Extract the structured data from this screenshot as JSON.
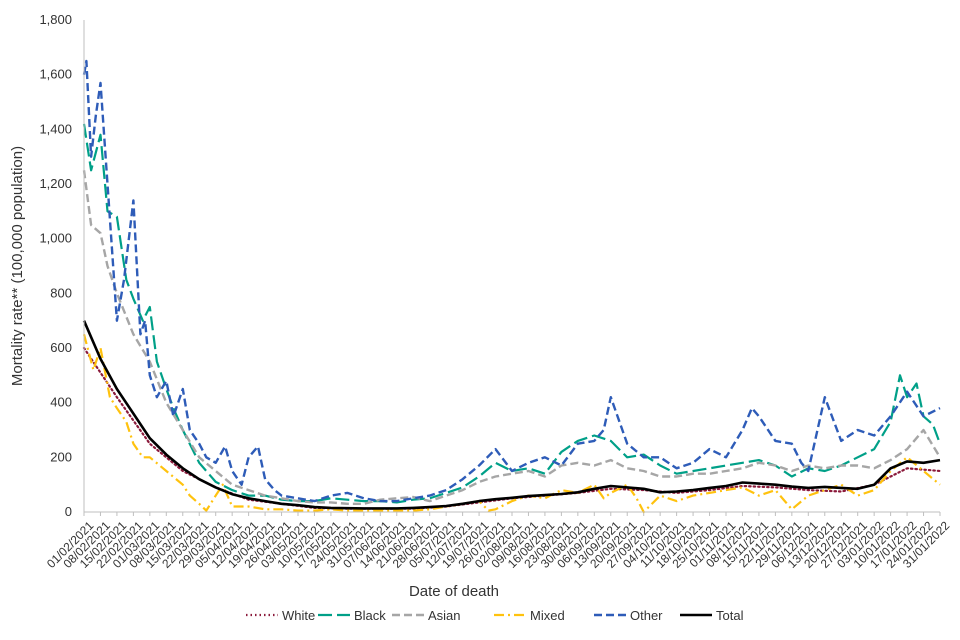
{
  "chart_data": {
    "type": "line",
    "xlabel": "Date of death",
    "ylabel": "Mortality rate** (100,000 population)",
    "ylim": [
      0,
      1800
    ],
    "y_ticks": [
      "0",
      "200",
      "400",
      "600",
      "800",
      "1,000",
      "1,200",
      "1,400",
      "1,600",
      "1,800"
    ],
    "x_range": [
      "01/02/2021",
      "31/01/2022"
    ],
    "x_tick_labels": [
      "01/02/2021",
      "08/02/2021",
      "15/02/2021",
      "22/02/2021",
      "01/03/2021",
      "08/03/2021",
      "15/03/2021",
      "22/03/2021",
      "29/03/2021",
      "05/04/2021",
      "12/04/2021",
      "19/04/2021",
      "26/04/2021",
      "03/05/2021",
      "10/05/2021",
      "17/05/2021",
      "24/05/2021",
      "31/05/2021",
      "07/06/2021",
      "14/06/2021",
      "21/06/2021",
      "28/06/2021",
      "05/07/2021",
      "12/07/2021",
      "19/07/2021",
      "26/07/2021",
      "02/08/2021",
      "09/08/2021",
      "16/08/2021",
      "23/08/2021",
      "30/08/2021",
      "06/09/2021",
      "13/09/2021",
      "20/09/2021",
      "27/09/2021",
      "04/10/2021",
      "11/10/2021",
      "18/10/2021",
      "25/10/2021",
      "01/11/2021",
      "08/11/2021",
      "15/11/2021",
      "22/11/2021",
      "29/11/2021",
      "06/12/2021",
      "13/12/2021",
      "20/12/2021",
      "27/12/2021",
      "03/01/2022",
      "10/01/2022",
      "17/01/2022",
      "24/01/2022",
      "31/01/2022"
    ],
    "grid": false,
    "legend_position": "bottom",
    "series": [
      {
        "name": "White",
        "color": "#8b1a3b",
        "style": "dotted",
        "x": [
          "01/02/2021",
          "15/02/2021",
          "01/03/2021",
          "15/03/2021",
          "29/03/2021",
          "12/04/2021",
          "26/04/2021",
          "10/05/2021",
          "24/05/2021",
          "07/06/2021",
          "21/06/2021",
          "05/07/2021",
          "19/07/2021",
          "02/08/2021",
          "16/08/2021",
          "30/08/2021",
          "13/09/2021",
          "27/09/2021",
          "11/10/2021",
          "25/10/2021",
          "08/11/2021",
          "22/11/2021",
          "06/12/2021",
          "20/12/2021",
          "03/01/2022",
          "17/01/2022",
          "31/01/2022"
        ],
        "y": [
          600,
          420,
          250,
          150,
          90,
          45,
          30,
          15,
          12,
          12,
          12,
          20,
          35,
          50,
          60,
          70,
          85,
          80,
          70,
          80,
          95,
          90,
          80,
          75,
          100,
          160,
          150
        ]
      },
      {
        "name": "Black",
        "color": "#00a088",
        "style": "longdash",
        "x": [
          "01/02/2021",
          "04/02/2021",
          "08/02/2021",
          "11/02/2021",
          "15/02/2021",
          "19/02/2021",
          "22/02/2021",
          "26/02/2021",
          "01/03/2021",
          "04/03/2021",
          "08/03/2021",
          "11/03/2021",
          "15/03/2021",
          "22/03/2021",
          "29/03/2021",
          "05/04/2021",
          "12/04/2021",
          "19/04/2021",
          "26/04/2021",
          "03/05/2021",
          "10/05/2021",
          "17/05/2021",
          "24/05/2021",
          "31/05/2021",
          "07/06/2021",
          "14/06/2021",
          "21/06/2021",
          "28/06/2021",
          "05/07/2021",
          "12/07/2021",
          "19/07/2021",
          "26/07/2021",
          "02/08/2021",
          "09/08/2021",
          "16/08/2021",
          "23/08/2021",
          "30/08/2021",
          "06/09/2021",
          "13/09/2021",
          "20/09/2021",
          "27/09/2021",
          "04/10/2021",
          "11/10/2021",
          "18/10/2021",
          "25/10/2021",
          "01/11/2021",
          "08/11/2021",
          "15/11/2021",
          "22/11/2021",
          "29/11/2021",
          "06/12/2021",
          "13/12/2021",
          "20/12/2021",
          "27/12/2021",
          "03/01/2022",
          "10/01/2022",
          "14/01/2022",
          "17/01/2022",
          "21/01/2022",
          "24/01/2022",
          "28/01/2022",
          "31/01/2022"
        ],
        "y": [
          1420,
          1250,
          1380,
          1100,
          1080,
          850,
          780,
          700,
          750,
          550,
          450,
          380,
          300,
          180,
          110,
          80,
          60,
          60,
          45,
          40,
          40,
          50,
          45,
          40,
          40,
          35,
          45,
          50,
          70,
          90,
          130,
          180,
          150,
          160,
          140,
          220,
          260,
          280,
          260,
          200,
          210,
          170,
          140,
          150,
          160,
          170,
          180,
          190,
          170,
          130,
          160,
          150,
          170,
          200,
          230,
          330,
          500,
          420,
          470,
          350,
          320,
          250
        ]
      },
      {
        "name": "Asian",
        "color": "#a6a6a6",
        "style": "dashed",
        "x": [
          "01/02/2021",
          "04/02/2021",
          "08/02/2021",
          "11/02/2021",
          "15/02/2021",
          "22/02/2021",
          "01/03/2021",
          "08/03/2021",
          "15/03/2021",
          "22/03/2021",
          "29/03/2021",
          "05/04/2021",
          "12/04/2021",
          "19/04/2021",
          "26/04/2021",
          "03/05/2021",
          "10/05/2021",
          "17/05/2021",
          "24/05/2021",
          "31/05/2021",
          "07/06/2021",
          "14/06/2021",
          "21/06/2021",
          "28/06/2021",
          "05/07/2021",
          "12/07/2021",
          "19/07/2021",
          "26/07/2021",
          "02/08/2021",
          "09/08/2021",
          "16/08/2021",
          "23/08/2021",
          "30/08/2021",
          "06/09/2021",
          "13/09/2021",
          "20/09/2021",
          "27/09/2021",
          "04/10/2021",
          "11/10/2021",
          "18/10/2021",
          "25/10/2021",
          "01/11/2021",
          "08/11/2021",
          "15/11/2021",
          "22/11/2021",
          "29/11/2021",
          "06/12/2021",
          "13/12/2021",
          "20/12/2021",
          "27/12/2021",
          "03/01/2022",
          "10/01/2022",
          "17/01/2022",
          "24/01/2022",
          "31/01/2022"
        ],
        "y": [
          1250,
          1050,
          1020,
          900,
          800,
          650,
          550,
          400,
          300,
          200,
          150,
          100,
          80,
          60,
          50,
          40,
          35,
          35,
          30,
          30,
          45,
          50,
          55,
          40,
          60,
          80,
          110,
          130,
          140,
          150,
          130,
          170,
          180,
          170,
          190,
          160,
          150,
          130,
          130,
          140,
          140,
          150,
          160,
          180,
          170,
          150,
          170,
          160,
          170,
          170,
          160,
          190,
          230,
          300,
          200
        ]
      },
      {
        "name": "Mixed",
        "color": "#ffc20e",
        "style": "dashdot",
        "x": [
          "01/02/2021",
          "05/02/2021",
          "08/02/2021",
          "12/02/2021",
          "15/02/2021",
          "19/02/2021",
          "22/02/2021",
          "26/02/2021",
          "01/03/2021",
          "08/03/2021",
          "15/03/2021",
          "18/03/2021",
          "22/03/2021",
          "25/03/2021",
          "29/03/2021",
          "01/04/2021",
          "05/04/2021",
          "12/04/2021",
          "19/04/2021",
          "26/04/2021",
          "03/05/2021",
          "10/05/2021",
          "17/05/2021",
          "24/05/2021",
          "31/05/2021",
          "07/06/2021",
          "14/06/2021",
          "21/06/2021",
          "28/06/2021",
          "05/07/2021",
          "12/07/2021",
          "19/07/2021",
          "23/07/2021",
          "26/07/2021",
          "02/08/2021",
          "09/08/2021",
          "16/08/2021",
          "23/08/2021",
          "30/08/2021",
          "06/09/2021",
          "10/09/2021",
          "13/09/2021",
          "20/09/2021",
          "24/09/2021",
          "27/09/2021",
          "04/10/2021",
          "11/10/2021",
          "18/10/2021",
          "25/10/2021",
          "01/11/2021",
          "08/11/2021",
          "15/11/2021",
          "22/11/2021",
          "26/11/2021",
          "29/11/2021",
          "06/12/2021",
          "13/12/2021",
          "20/12/2021",
          "27/12/2021",
          "03/01/2022",
          "10/01/2022",
          "17/01/2022",
          "24/01/2022",
          "31/01/2022"
        ],
        "y": [
          650,
          520,
          600,
          420,
          380,
          330,
          250,
          200,
          200,
          150,
          100,
          60,
          30,
          5,
          60,
          100,
          20,
          20,
          10,
          10,
          5,
          5,
          10,
          5,
          5,
          5,
          5,
          5,
          10,
          20,
          30,
          40,
          5,
          10,
          40,
          60,
          50,
          80,
          70,
          100,
          50,
          70,
          100,
          50,
          0,
          60,
          40,
          60,
          70,
          80,
          90,
          60,
          80,
          40,
          10,
          60,
          80,
          100,
          60,
          80,
          150,
          200,
          150,
          100
        ]
      },
      {
        "name": "Other",
        "color": "#2e5cb8",
        "style": "dashed",
        "x": [
          "01/02/2021",
          "02/02/2021",
          "04/02/2021",
          "06/02/2021",
          "08/02/2021",
          "11/02/2021",
          "15/02/2021",
          "18/02/2021",
          "22/02/2021",
          "25/02/2021",
          "27/02/2021",
          "01/03/2021",
          "04/03/2021",
          "08/03/2021",
          "11/03/2021",
          "15/03/2021",
          "18/03/2021",
          "22/03/2021",
          "25/03/2021",
          "29/03/2021",
          "02/04/2021",
          "05/04/2021",
          "09/04/2021",
          "12/04/2021",
          "16/04/2021",
          "19/04/2021",
          "23/04/2021",
          "26/04/2021",
          "03/05/2021",
          "10/05/2021",
          "17/05/2021",
          "24/05/2021",
          "31/05/2021",
          "07/06/2021",
          "14/06/2021",
          "21/06/2021",
          "28/06/2021",
          "05/07/2021",
          "12/07/2021",
          "19/07/2021",
          "26/07/2021",
          "02/08/2021",
          "09/08/2021",
          "16/08/2021",
          "23/08/2021",
          "30/08/2021",
          "06/09/2021",
          "10/09/2021",
          "13/09/2021",
          "20/09/2021",
          "27/09/2021",
          "04/10/2021",
          "11/10/2021",
          "18/10/2021",
          "25/10/2021",
          "01/11/2021",
          "08/11/2021",
          "12/11/2021",
          "15/11/2021",
          "22/11/2021",
          "29/11/2021",
          "03/12/2021",
          "06/12/2021",
          "13/12/2021",
          "20/12/2021",
          "27/12/2021",
          "03/01/2022",
          "10/01/2022",
          "17/01/2022",
          "24/01/2022",
          "31/01/2022"
        ],
        "y": [
          1600,
          1650,
          1300,
          1450,
          1570,
          1200,
          700,
          850,
          1140,
          650,
          700,
          500,
          420,
          480,
          350,
          450,
          300,
          250,
          200,
          180,
          240,
          150,
          100,
          200,
          240,
          120,
          80,
          60,
          50,
          40,
          60,
          70,
          50,
          40,
          40,
          50,
          60,
          80,
          120,
          170,
          230,
          150,
          180,
          200,
          170,
          250,
          260,
          300,
          420,
          250,
          200,
          200,
          160,
          180,
          230,
          200,
          300,
          380,
          350,
          260,
          250,
          180,
          150,
          420,
          260,
          300,
          280,
          350,
          440,
          350,
          380
        ]
      },
      {
        "name": "Total",
        "color": "#000000",
        "style": "solid",
        "x": [
          "01/02/2021",
          "08/02/2021",
          "15/02/2021",
          "22/02/2021",
          "01/03/2021",
          "08/03/2021",
          "15/03/2021",
          "22/03/2021",
          "29/03/2021",
          "05/04/2021",
          "12/04/2021",
          "19/04/2021",
          "26/04/2021",
          "03/05/2021",
          "10/05/2021",
          "17/05/2021",
          "24/05/2021",
          "31/05/2021",
          "07/06/2021",
          "14/06/2021",
          "21/06/2021",
          "28/06/2021",
          "05/07/2021",
          "12/07/2021",
          "19/07/2021",
          "26/07/2021",
          "02/08/2021",
          "09/08/2021",
          "16/08/2021",
          "23/08/2021",
          "30/08/2021",
          "06/09/2021",
          "13/09/2021",
          "20/09/2021",
          "27/09/2021",
          "04/10/2021",
          "11/10/2021",
          "18/10/2021",
          "25/10/2021",
          "01/11/2021",
          "08/11/2021",
          "15/11/2021",
          "22/11/2021",
          "29/11/2021",
          "06/12/2021",
          "13/12/2021",
          "20/12/2021",
          "27/12/2021",
          "03/01/2022",
          "10/01/2022",
          "17/01/2022",
          "24/01/2022",
          "31/01/2022"
        ],
        "y": [
          700,
          560,
          450,
          360,
          270,
          210,
          160,
          120,
          90,
          65,
          50,
          40,
          30,
          25,
          18,
          15,
          14,
          13,
          13,
          13,
          15,
          18,
          22,
          30,
          40,
          47,
          52,
          58,
          62,
          66,
          72,
          85,
          95,
          90,
          85,
          72,
          75,
          80,
          88,
          95,
          108,
          104,
          100,
          93,
          88,
          92,
          88,
          85,
          100,
          160,
          185,
          180,
          190
        ]
      }
    ]
  }
}
